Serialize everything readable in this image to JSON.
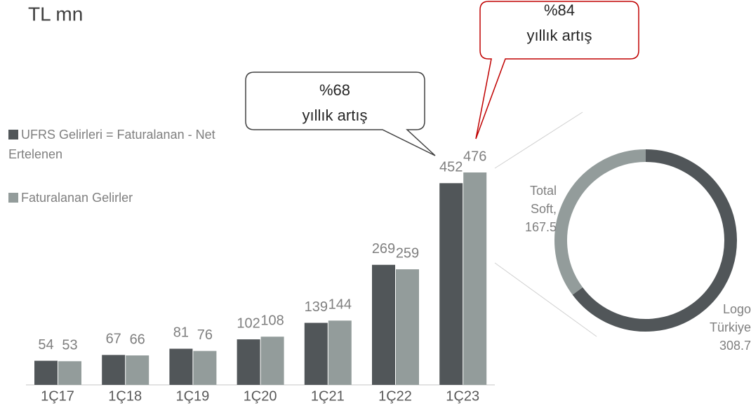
{
  "chart_data": [
    {
      "type": "bar",
      "title": "TL mn",
      "categories": [
        "1Ç17",
        "1Ç18",
        "1Ç19",
        "1Ç20",
        "1Ç21",
        "1Ç22",
        "1Ç23"
      ],
      "series": [
        {
          "name": "UFRS Gelirleri = Faturalanan - Net Ertelenen",
          "color": "#515659",
          "values": [
            54,
            67,
            81,
            102,
            139,
            269,
            452
          ]
        },
        {
          "name": "Faturalanan Gelirler",
          "color": "#939c9b",
          "values": [
            53,
            66,
            76,
            108,
            144,
            259,
            476
          ]
        }
      ],
      "annotations": [
        {
          "lines": [
            "%68",
            "yıllık artış"
          ]
        },
        {
          "lines": [
            "%84",
            "yıllık artış"
          ]
        }
      ]
    },
    {
      "type": "donut",
      "categories": [
        "Logo Türkiye",
        "Total Soft,"
      ],
      "values": [
        308.7,
        167.5
      ],
      "colors": [
        "#515659",
        "#939c9b"
      ]
    }
  ]
}
